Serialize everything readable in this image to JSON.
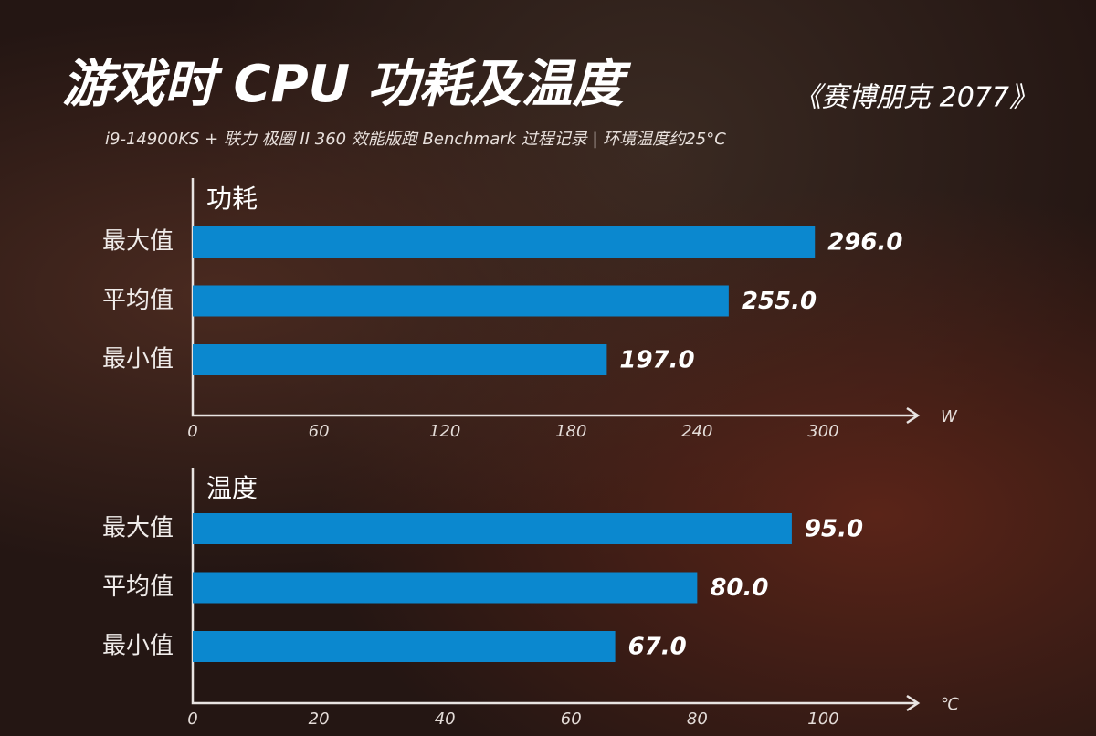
{
  "header": {
    "title": "游戏时 CPU 功耗及温度",
    "game": "《赛博朋克 2077》",
    "subtitle": "i9-14900KS + 联力 极圈 II 360 效能版跑 Benchmark 过程记录 | 环境温度约25°C"
  },
  "chart_data": [
    {
      "type": "bar",
      "orientation": "horizontal",
      "title": "功耗",
      "categories": [
        "最大值",
        "平均值",
        "最小值"
      ],
      "values": [
        296,
        255,
        197
      ],
      "value_labels": [
        "296.0",
        "255.0",
        "197.0"
      ],
      "color": "#0b88cf",
      "xlim": [
        0,
        345
      ],
      "xticks": [
        0,
        60,
        120,
        180,
        240,
        300
      ],
      "x_unit": "W",
      "grid": false
    },
    {
      "type": "bar",
      "orientation": "horizontal",
      "title": "温度",
      "categories": [
        "最大值",
        "平均值",
        "最小值"
      ],
      "values": [
        95,
        80,
        67
      ],
      "value_labels": [
        "95.0",
        "80.0",
        "67.0"
      ],
      "color": "#0b88cf",
      "xlim": [
        0,
        115
      ],
      "xticks": [
        0,
        20,
        40,
        60,
        80,
        100
      ],
      "x_unit": "℃",
      "grid": false
    }
  ]
}
